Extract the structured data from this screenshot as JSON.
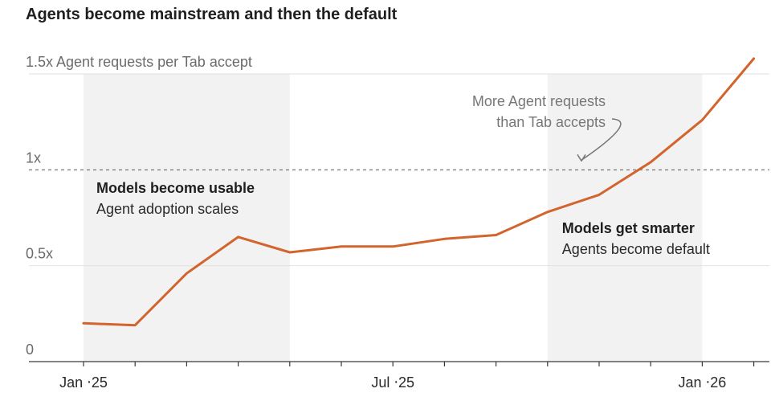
{
  "chart_data": {
    "type": "line",
    "title": "Agents become mainstream and then the default",
    "ylabel": "Agent requests per Tab accept",
    "ylim": [
      0,
      1.5
    ],
    "y_ticks": [
      {
        "value": 0,
        "label": "0"
      },
      {
        "value": 0.5,
        "label": "0.5x"
      },
      {
        "value": 1,
        "label": "1x"
      },
      {
        "value": 1.5,
        "label": "1.5x Agent requests per Tab accept"
      }
    ],
    "x_ticks": [
      {
        "value": "2025-01",
        "label": "Jan ‧25"
      },
      {
        "value": "2025-07",
        "label": "Jul ‧25"
      },
      {
        "value": "2026-01",
        "label": "Jan ‧26"
      }
    ],
    "x_start": "2025-01",
    "x_end": "2026-02",
    "reference_line": {
      "value": 1,
      "style": "dashed"
    },
    "series": [
      {
        "color": "#d2642d",
        "points": [
          {
            "x": "2025-01",
            "y": 0.2
          },
          {
            "x": "2025-02",
            "y": 0.19
          },
          {
            "x": "2025-03",
            "y": 0.46
          },
          {
            "x": "2025-04",
            "y": 0.65
          },
          {
            "x": "2025-05",
            "y": 0.57
          },
          {
            "x": "2025-06",
            "y": 0.6
          },
          {
            "x": "2025-07",
            "y": 0.6
          },
          {
            "x": "2025-08",
            "y": 0.64
          },
          {
            "x": "2025-09",
            "y": 0.66
          },
          {
            "x": "2025-10",
            "y": 0.78
          },
          {
            "x": "2025-11",
            "y": 0.87
          },
          {
            "x": "2025-12",
            "y": 1.04
          },
          {
            "x": "2026-01",
            "y": 1.26
          },
          {
            "x": "2026-02",
            "y": 1.58
          }
        ]
      }
    ],
    "shaded_periods": [
      {
        "from": "2025-01",
        "to": "2025-05",
        "heading": "Models become usable",
        "subheading": "Agent adoption scales"
      },
      {
        "from": "2025-10",
        "to": "2026-01",
        "heading": "Models get smarter",
        "subheading": "Agents become default"
      }
    ],
    "callout": {
      "lines": [
        "More Agent requests",
        "than Tab accepts"
      ],
      "x": "2025-11",
      "y": 1
    }
  }
}
